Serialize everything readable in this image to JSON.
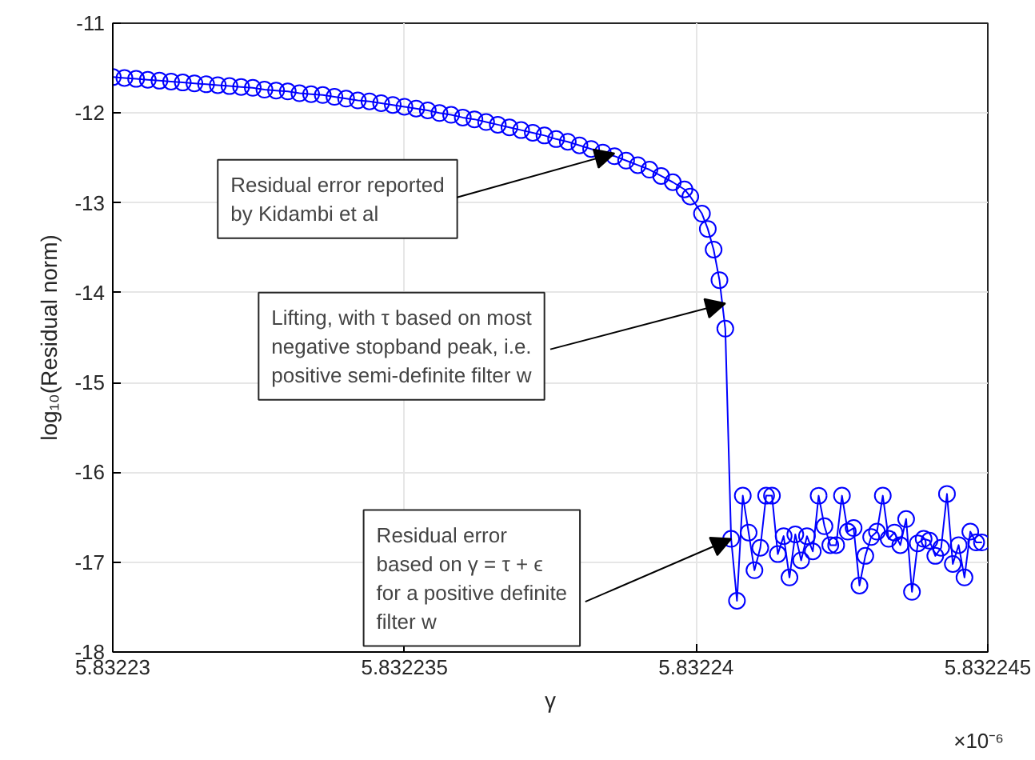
{
  "chart_data": {
    "type": "line",
    "xlabel": "γ",
    "ylabel": "log₁₀(Residual norm)",
    "x": [
      5.83223,
      5.8322302,
      5.8322304,
      5.8322306,
      5.8322308,
      5.832231,
      5.8322312,
      5.8322314,
      5.8322316,
      5.8322318,
      5.832232,
      5.8322322,
      5.8322324,
      5.8322326,
      5.8322328,
      5.832233,
      5.8322332,
      5.8322334,
      5.8322336,
      5.8322338,
      5.832234,
      5.8322342,
      5.8322344,
      5.8322346,
      5.8322348,
      5.832235,
      5.8322352,
      5.8322354,
      5.8322356,
      5.8322358,
      5.832236,
      5.8322362,
      5.8322364,
      5.8322366,
      5.8322368,
      5.832237,
      5.8322372,
      5.8322374,
      5.8322376,
      5.8322378,
      5.832238,
      5.8322382,
      5.8322384,
      5.8322386,
      5.8322388,
      5.832239,
      5.8322392,
      5.8322394,
      5.8322396,
      5.8322398,
      5.8322399,
      5.8322401,
      5.8322402,
      5.8322403,
      5.8322404,
      5.8322405,
      5.8322406,
      5.8322407,
      5.8322408,
      5.8322409,
      5.832241,
      5.8322411,
      5.8322412,
      5.8322413,
      5.8322414,
      5.8322415,
      5.8322416,
      5.8322417,
      5.8322418,
      5.8322419,
      5.832242,
      5.8322421,
      5.8322422,
      5.8322423,
      5.8322424,
      5.8322425,
      5.8322426,
      5.8322427,
      5.8322428,
      5.8322429,
      5.832243,
      5.8322431,
      5.8322432,
      5.8322433,
      5.8322434,
      5.8322435,
      5.8322436,
      5.8322437,
      5.8322438,
      5.8322439,
      5.832244,
      5.8322441,
      5.8322442,
      5.8322443,
      5.8322444,
      5.8322445,
      5.8322446,
      5.8322447,
      5.8322448,
      5.8322449
    ],
    "series": [
      {
        "color": "#0000ff",
        "values": [
          -11.6,
          -11.61,
          -11.62,
          -11.63,
          -11.64,
          -11.65,
          -11.66,
          -11.67,
          -11.68,
          -11.69,
          -11.7,
          -11.71,
          -11.72,
          -11.74,
          -11.75,
          -11.76,
          -11.78,
          -11.79,
          -11.8,
          -11.82,
          -11.84,
          -11.86,
          -11.87,
          -11.89,
          -11.91,
          -11.93,
          -11.95,
          -11.97,
          -12.0,
          -12.02,
          -12.05,
          -12.07,
          -12.1,
          -12.13,
          -12.16,
          -12.19,
          -12.22,
          -12.25,
          -12.29,
          -12.32,
          -12.36,
          -12.4,
          -12.44,
          -12.48,
          -12.53,
          -12.58,
          -12.63,
          -12.7,
          -12.77,
          -12.85,
          -12.93,
          -13.12,
          -13.29,
          -13.52,
          -13.86,
          -14.4,
          -16.74,
          -17.43,
          -16.26,
          -16.67,
          -17.09,
          -16.84,
          -16.26,
          -16.26,
          -16.91,
          -16.71,
          -17.17,
          -16.69,
          -16.98,
          -16.71,
          -16.88,
          -16.26,
          -16.6,
          -16.81,
          -16.81,
          -16.26,
          -16.66,
          -16.62,
          -17.26,
          -16.93,
          -16.72,
          -16.66,
          -16.26,
          -16.74,
          -16.67,
          -16.81,
          -16.52,
          -17.33,
          -16.79,
          -16.74,
          -16.76,
          -16.93,
          -16.84,
          -16.24,
          -17.02,
          -16.81,
          -17.17,
          -16.66,
          -16.78,
          -16.78
        ]
      }
    ],
    "marker": "circle",
    "line_style": "solid",
    "grid": true,
    "xlim": [
      5.83223,
      5.832245
    ],
    "xticks": [
      5.83223,
      5.832235,
      5.83224,
      5.832245
    ],
    "ylim": [
      -18,
      -11
    ],
    "yticks": [
      -18,
      -17,
      -16,
      -15,
      -14,
      -13,
      -12,
      -11
    ],
    "annotations": [
      {
        "text": "Residual error reported\nby Kidambi et al",
        "x": 5.8322386,
        "y": -12.45
      },
      {
        "text": "Lifting, with τ based on most\nnegative stopband peak, i.e.\npositive semi-definite filter w",
        "x": 5.8322405,
        "y": -14.12
      },
      {
        "text": "Residual error\nbased on γ = τ + ϵ\nfor a positive definite\nfilter w",
        "x": 5.8322406,
        "y": -16.74
      },
      "×10⁻⁶"
    ]
  }
}
